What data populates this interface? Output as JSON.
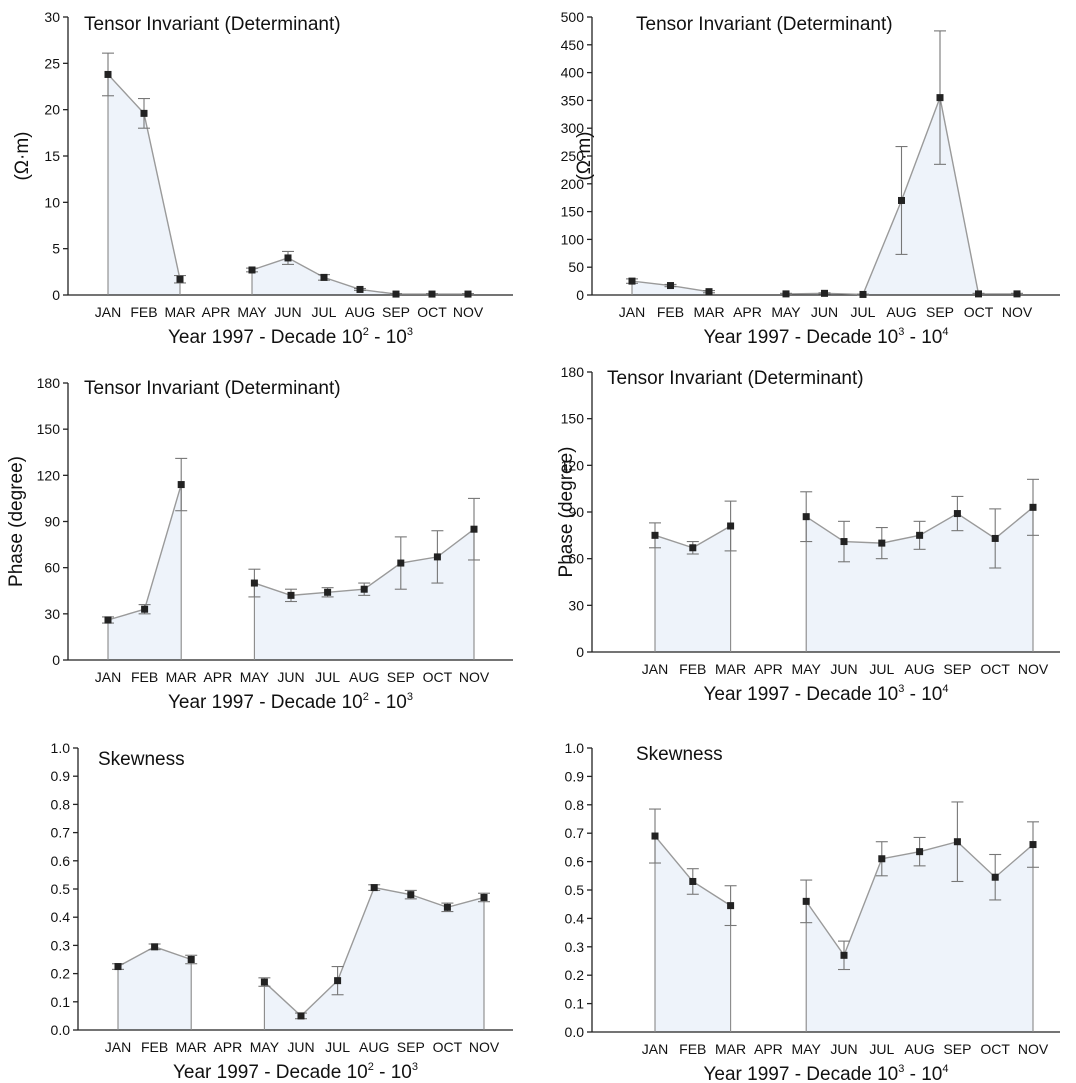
{
  "chart_data": [
    {
      "type": "line",
      "title": "Tensor Invariant (Determinant)",
      "ylabel": "(Ω·m)",
      "xlabel": "Year 1997 - Decade 10",
      "xlabel_tail": [
        "2",
        " - 10",
        "3"
      ],
      "categories": [
        "JAN",
        "FEB",
        "MAR",
        "APR",
        "MAY",
        "JUN",
        "JUL",
        "AUG",
        "SEP",
        "OCT",
        "NOV"
      ],
      "ylim": [
        0,
        30
      ],
      "yticks": [
        "0",
        "5",
        "10",
        "15",
        "20",
        "25",
        "30"
      ],
      "values": [
        23.8,
        19.6,
        1.7,
        null,
        2.7,
        4.0,
        1.9,
        0.6,
        0.1,
        0.1,
        0.1
      ],
      "err": [
        2.3,
        1.6,
        0.4,
        null,
        0.2,
        0.7,
        0.3,
        0.1,
        0.05,
        0.05,
        0.05
      ]
    },
    {
      "type": "line",
      "title": "Tensor Invariant (Determinant)",
      "ylabel": "(Ω·m)",
      "xlabel": "Year 1997 - Decade 10",
      "xlabel_tail": [
        "3",
        " - 10",
        "4"
      ],
      "categories": [
        "JAN",
        "FEB",
        "MAR",
        "APR",
        "MAY",
        "JUN",
        "JUL",
        "AUG",
        "SEP",
        "OCT",
        "NOV"
      ],
      "ylim": [
        0,
        500
      ],
      "yticks": [
        "0",
        "50",
        "100",
        "150",
        "200",
        "250",
        "300",
        "350",
        "400",
        "450",
        "500"
      ],
      "values": [
        25,
        17,
        6,
        null,
        2,
        3,
        1,
        170,
        355,
        2,
        2
      ],
      "err": [
        4,
        2,
        2,
        null,
        1,
        1,
        0.5,
        97,
        120,
        1,
        1
      ]
    },
    {
      "type": "line",
      "title": "Tensor Invariant (Determinant)",
      "ylabel": "Phase (degree)",
      "xlabel": "Year 1997 - Decade 10",
      "xlabel_tail": [
        "2",
        " - 10",
        "3"
      ],
      "categories": [
        "JAN",
        "FEB",
        "MAR",
        "APR",
        "MAY",
        "JUN",
        "JUL",
        "AUG",
        "SEP",
        "OCT",
        "NOV"
      ],
      "ylim": [
        0,
        180
      ],
      "yticks": [
        "0",
        "30",
        "60",
        "90",
        "120",
        "150",
        "180"
      ],
      "values": [
        26,
        33,
        114,
        null,
        50,
        42,
        44,
        46,
        63,
        67,
        85
      ],
      "err": [
        2,
        3,
        17,
        null,
        9,
        4,
        3,
        4,
        17,
        17,
        20
      ]
    },
    {
      "type": "line",
      "title": "Tensor Invariant (Determinant)",
      "ylabel": "Phase (degree)",
      "xlabel": "Year 1997 - Decade 10",
      "xlabel_tail": [
        "3",
        " - 10",
        "4"
      ],
      "categories": [
        "JAN",
        "FEB",
        "MAR",
        "APR",
        "MAY",
        "JUN",
        "JUL",
        "AUG",
        "SEP",
        "OCT",
        "NOV"
      ],
      "ylim": [
        0,
        180
      ],
      "yticks": [
        "0",
        "30",
        "60",
        "90",
        "120",
        "150",
        "180"
      ],
      "values": [
        75,
        67,
        81,
        null,
        87,
        71,
        70,
        75,
        89,
        73,
        93
      ],
      "err": [
        8,
        4,
        16,
        null,
        16,
        13,
        10,
        9,
        11,
        19,
        18
      ]
    },
    {
      "type": "line",
      "title": "Skewness",
      "ylabel": "",
      "xlabel": "Year 1997 - Decade 10",
      "xlabel_tail": [
        "2",
        " - 10",
        "3"
      ],
      "categories": [
        "JAN",
        "FEB",
        "MAR",
        "APR",
        "MAY",
        "JUN",
        "JUL",
        "AUG",
        "SEP",
        "OCT",
        "NOV"
      ],
      "ylim": [
        0,
        1.0
      ],
      "yticks": [
        "0.0",
        "0.1",
        "0.2",
        "0.3",
        "0.4",
        "0.5",
        "0.6",
        "0.7",
        "0.8",
        "0.9",
        "1.0"
      ],
      "values": [
        0.225,
        0.295,
        0.25,
        null,
        0.17,
        0.05,
        0.175,
        0.505,
        0.48,
        0.435,
        0.47
      ],
      "err": [
        0.01,
        0.01,
        0.015,
        null,
        0.015,
        0.01,
        0.05,
        0.01,
        0.015,
        0.015,
        0.015
      ]
    },
    {
      "type": "line",
      "title": "Skewness",
      "ylabel": "",
      "xlabel": "Year 1997 - Decade 10",
      "xlabel_tail": [
        "3",
        " - 10",
        "4"
      ],
      "categories": [
        "JAN",
        "FEB",
        "MAR",
        "APR",
        "MAY",
        "JUN",
        "JUL",
        "AUG",
        "SEP",
        "OCT",
        "NOV"
      ],
      "ylim": [
        0,
        1.0
      ],
      "yticks": [
        "0.0",
        "0.1",
        "0.2",
        "0.3",
        "0.4",
        "0.5",
        "0.6",
        "0.7",
        "0.8",
        "0.9",
        "1.0"
      ],
      "values": [
        0.69,
        0.53,
        0.445,
        null,
        0.46,
        0.27,
        0.61,
        0.635,
        0.67,
        0.545,
        0.66
      ],
      "err": [
        0.095,
        0.045,
        0.07,
        null,
        0.075,
        0.05,
        0.06,
        0.05,
        0.14,
        0.08,
        0.08
      ]
    }
  ]
}
